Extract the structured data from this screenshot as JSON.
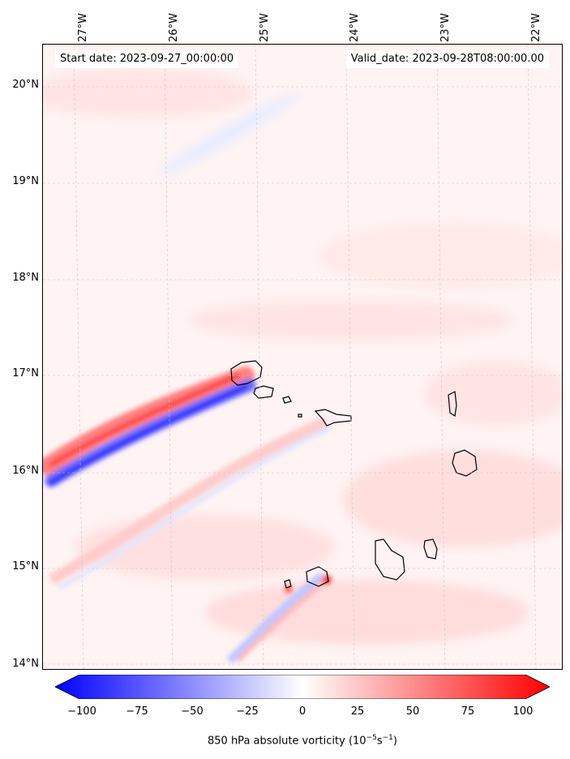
{
  "map": {
    "start_label": "Start date: 2023-09-27_00:00:00",
    "valid_label": "Valid_date: 2023-09-28T08:00:00.00",
    "lat_ticks": [
      "20°N",
      "19°N",
      "18°N",
      "17°N",
      "16°N",
      "15°N",
      "14°N"
    ],
    "lon_ticks": [
      "27°W",
      "26°W",
      "25°W",
      "24°W",
      "23°W",
      "22°W"
    ],
    "colorbar": {
      "ticks": [
        "−100",
        "−75",
        "−50",
        "−25",
        "0",
        "25",
        "50",
        "75",
        "100"
      ],
      "title": "850 hPa absolute vorticity (10",
      "title_exp1": "−5",
      "title_mid": "s",
      "title_exp2": "−1",
      "title_end": ")"
    },
    "colors": {
      "negative": "#0000ff",
      "neutral": "#ffffff",
      "positive": "#ff0000",
      "background": "#fff3f3"
    },
    "features": [
      "vorticity-band-north-positive",
      "vorticity-band-north-negative",
      "vorticity-band-south",
      "island-coastlines"
    ]
  }
}
